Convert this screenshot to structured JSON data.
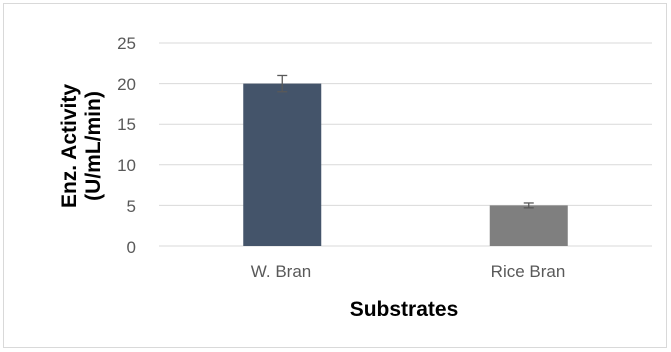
{
  "chart_data": {
    "type": "bar",
    "categories": [
      "W. Bran",
      "Rice Bran"
    ],
    "values": [
      20,
      5
    ],
    "errors": [
      1,
      0.3
    ],
    "bar_colors": [
      "#44546a",
      "#7f7f7f"
    ],
    "ylim": [
      0,
      25
    ],
    "yticks": [
      "0",
      "5",
      "10",
      "15",
      "20",
      "25"
    ],
    "xlabel": "Substrates",
    "ylabel_lines": [
      "Enz. Activity",
      "(U/mL/min)"
    ],
    "grid": true,
    "legend": "none"
  }
}
